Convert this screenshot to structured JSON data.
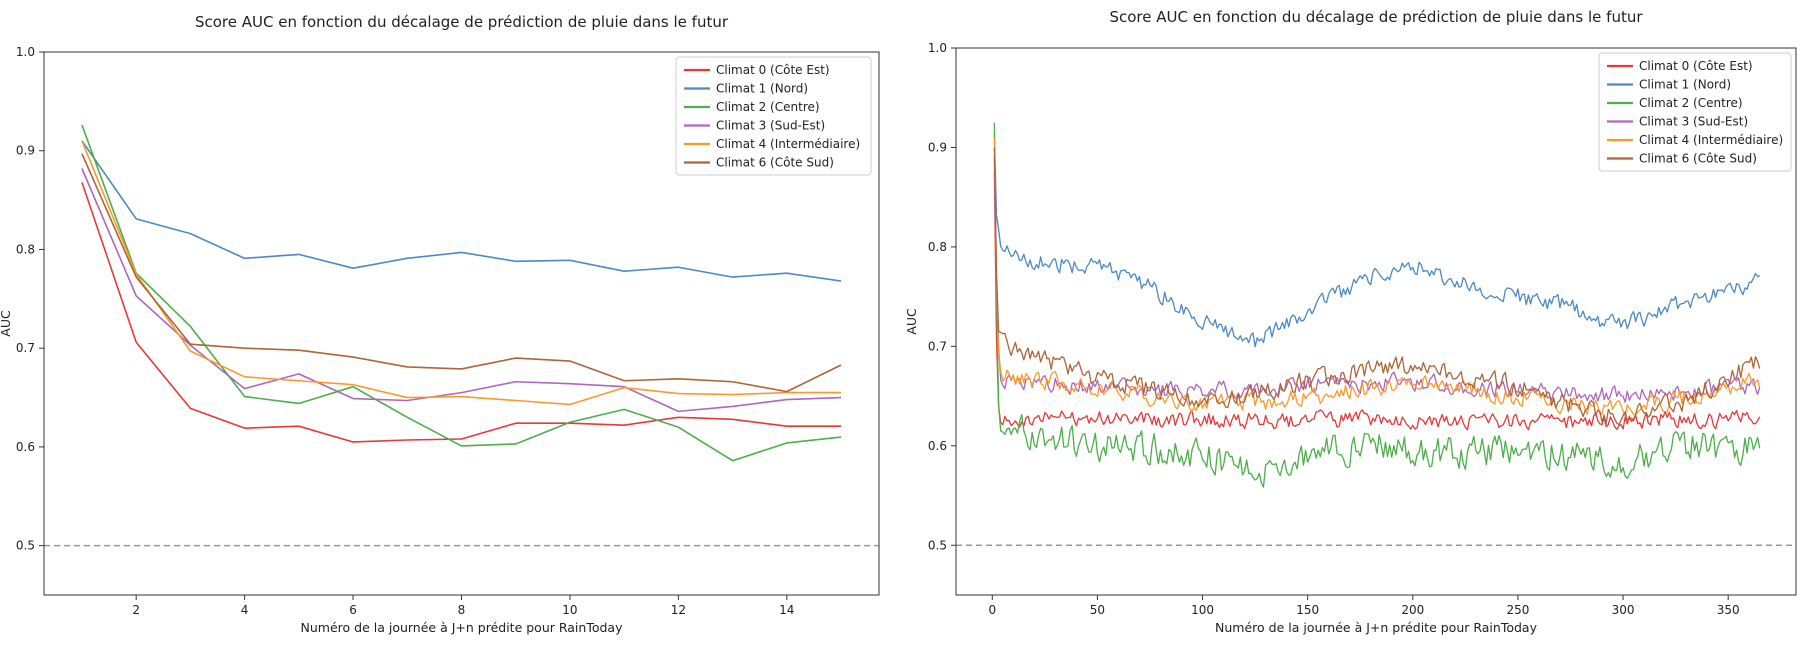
{
  "chart_data": [
    {
      "type": "line",
      "title": "Score AUC en fonction du décalage de prédiction de pluie dans le futur",
      "xlabel": "Numéro de la journée à J+n prédite pour RainToday",
      "ylabel": "AUC",
      "xlim": [
        0.3,
        15.7
      ],
      "ylim": [
        0.45,
        1.0
      ],
      "xticks": [
        2,
        4,
        6,
        8,
        10,
        12,
        14
      ],
      "yticks": [
        0.5,
        0.6,
        0.7,
        0.8,
        0.9,
        1.0
      ],
      "ytick_labels": [
        "0.5",
        "0.6",
        "0.7",
        "0.8",
        "0.9",
        "1.0"
      ],
      "reference_line": {
        "y": 0.5,
        "style": "dashed",
        "color": "#999999"
      },
      "grid": false,
      "legend_position": "top-right",
      "x": [
        1,
        2,
        3,
        4,
        5,
        6,
        7,
        8,
        9,
        10,
        11,
        12,
        13,
        14,
        15
      ],
      "series": [
        {
          "name": "Climat 0 (Côte Est)",
          "color": "#e8383a",
          "values": [
            0.868,
            0.706,
            0.639,
            0.619,
            0.621,
            0.605,
            0.607,
            0.608,
            0.624,
            0.624,
            0.622,
            0.63,
            0.628,
            0.621,
            0.621
          ]
        },
        {
          "name": "Climat 1 (Nord)",
          "color": "#4b8ac4",
          "values": [
            0.91,
            0.831,
            0.816,
            0.791,
            0.795,
            0.781,
            0.791,
            0.797,
            0.788,
            0.789,
            0.778,
            0.782,
            0.772,
            0.776,
            0.768
          ]
        },
        {
          "name": "Climat 2 (Centre)",
          "color": "#4caf4a",
          "values": [
            0.926,
            0.776,
            0.722,
            0.651,
            0.644,
            0.661,
            0.63,
            0.601,
            0.603,
            0.625,
            0.638,
            0.62,
            0.586,
            0.604,
            0.61
          ]
        },
        {
          "name": "Climat 3 (Sud-Est)",
          "color": "#b065bf",
          "values": [
            0.882,
            0.753,
            0.703,
            0.659,
            0.674,
            0.649,
            0.647,
            0.655,
            0.666,
            0.664,
            0.661,
            0.636,
            0.641,
            0.648,
            0.65
          ]
        },
        {
          "name": "Climat 4 (Intermédiaire)",
          "color": "#fb9a2c",
          "values": [
            0.91,
            0.775,
            0.697,
            0.671,
            0.667,
            0.663,
            0.65,
            0.651,
            0.647,
            0.643,
            0.66,
            0.654,
            0.653,
            0.655,
            0.655
          ]
        },
        {
          "name": "Climat 6 (Côte Sud)",
          "color": "#ad6439",
          "values": [
            0.897,
            0.772,
            0.704,
            0.7,
            0.698,
            0.691,
            0.681,
            0.679,
            0.69,
            0.687,
            0.667,
            0.669,
            0.666,
            0.656,
            0.683
          ]
        }
      ]
    },
    {
      "type": "line",
      "title": "Score AUC en fonction du décalage de prédiction de pluie dans le futur",
      "xlabel": "Numéro de la journée à J+n prédite pour RainToday",
      "ylabel": "AUC",
      "xlim": [
        -17.25,
        382.25
      ],
      "ylim": [
        0.45,
        1.0
      ],
      "xticks": [
        0,
        50,
        100,
        150,
        200,
        250,
        300,
        350
      ],
      "yticks": [
        0.5,
        0.6,
        0.7,
        0.8,
        0.9,
        1.0
      ],
      "ytick_labels": [
        "0.5",
        "0.6",
        "0.7",
        "0.8",
        "0.9",
        "1.0"
      ],
      "reference_line": {
        "y": 0.5,
        "style": "dashed",
        "color": "#999999"
      },
      "grid": false,
      "legend_position": "top-right",
      "x_range": [
        1,
        365
      ],
      "series": [
        {
          "name": "Climat 0 (Côte Est)",
          "color": "#e8383a",
          "head": [
            0.875,
            0.708,
            0.64
          ],
          "anchors": [
            [
              5,
              0.628
            ],
            [
              50,
              0.628
            ],
            [
              100,
              0.626
            ],
            [
              150,
              0.626
            ],
            [
              200,
              0.626
            ],
            [
              250,
              0.623
            ],
            [
              300,
              0.625
            ],
            [
              365,
              0.628
            ]
          ],
          "noise": 0.012
        },
        {
          "name": "Climat 1 (Nord)",
          "color": "#4b8ac4",
          "head": [
            0.915,
            0.832,
            0.818
          ],
          "anchors": [
            [
              5,
              0.8
            ],
            [
              20,
              0.785
            ],
            [
              50,
              0.78
            ],
            [
              75,
              0.76
            ],
            [
              100,
              0.725
            ],
            [
              125,
              0.703
            ],
            [
              150,
              0.735
            ],
            [
              175,
              0.765
            ],
            [
              200,
              0.782
            ],
            [
              225,
              0.763
            ],
            [
              250,
              0.75
            ],
            [
              275,
              0.74
            ],
            [
              290,
              0.72
            ],
            [
              310,
              0.728
            ],
            [
              330,
              0.745
            ],
            [
              350,
              0.755
            ],
            [
              365,
              0.765
            ]
          ],
          "noise": 0.012
        },
        {
          "name": "Climat 2 (Centre)",
          "color": "#4caf4a",
          "head": [
            0.925,
            0.755,
            0.642
          ],
          "anchors": [
            [
              5,
              0.625
            ],
            [
              25,
              0.605
            ],
            [
              50,
              0.6
            ],
            [
              75,
              0.598
            ],
            [
              100,
              0.59
            ],
            [
              125,
              0.575
            ],
            [
              150,
              0.59
            ],
            [
              175,
              0.6
            ],
            [
              200,
              0.598
            ],
            [
              225,
              0.592
            ],
            [
              250,
              0.6
            ],
            [
              275,
              0.59
            ],
            [
              300,
              0.585
            ],
            [
              330,
              0.6
            ],
            [
              365,
              0.595
            ]
          ],
          "noise": 0.022
        },
        {
          "name": "Climat 3 (Sud-Est)",
          "color": "#b065bf",
          "head": [
            0.89,
            0.755,
            0.7
          ],
          "anchors": [
            [
              5,
              0.665
            ],
            [
              50,
              0.66
            ],
            [
              100,
              0.655
            ],
            [
              150,
              0.66
            ],
            [
              200,
              0.665
            ],
            [
              250,
              0.655
            ],
            [
              300,
              0.65
            ],
            [
              365,
              0.66
            ]
          ],
          "noise": 0.012
        },
        {
          "name": "Climat 4 (Intermédiaire)",
          "color": "#fb9a2c",
          "head": [
            0.91,
            0.77,
            0.695
          ],
          "anchors": [
            [
              5,
              0.668
            ],
            [
              50,
              0.66
            ],
            [
              100,
              0.64
            ],
            [
              150,
              0.648
            ],
            [
              200,
              0.665
            ],
            [
              250,
              0.65
            ],
            [
              300,
              0.635
            ],
            [
              365,
              0.665
            ]
          ],
          "noise": 0.013
        },
        {
          "name": "Climat 6 (Côte Sud)",
          "color": "#ad6439",
          "head": [
            0.9,
            0.775,
            0.715
          ],
          "anchors": [
            [
              5,
              0.705
            ],
            [
              25,
              0.685
            ],
            [
              50,
              0.668
            ],
            [
              100,
              0.645
            ],
            [
              150,
              0.665
            ],
            [
              200,
              0.682
            ],
            [
              250,
              0.66
            ],
            [
              290,
              0.63
            ],
            [
              330,
              0.645
            ],
            [
              365,
              0.685
            ]
          ],
          "noise": 0.014
        }
      ]
    }
  ]
}
